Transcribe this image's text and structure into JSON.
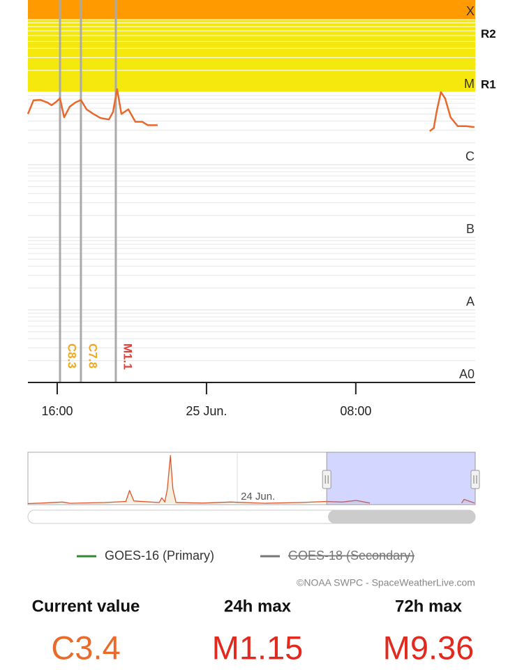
{
  "chart_data": [
    {
      "type": "line",
      "log_scale": true,
      "grid": true,
      "minor_grid": true,
      "xlim": [
        14.43,
        38.4
      ],
      "xticks": [
        {
          "value": 16,
          "label": "16:00"
        },
        {
          "value": 24,
          "label": "25 Jun."
        },
        {
          "value": 32,
          "label": "08:00"
        }
      ],
      "ylim": [
        1e-09,
        0.000186
      ],
      "yticks": [
        {
          "value": 1e-09,
          "label": "A0"
        },
        {
          "value": 1e-08,
          "label": "A"
        },
        {
          "value": 1e-07,
          "label": "B"
        },
        {
          "value": 1e-06,
          "label": "C"
        },
        {
          "value": 1e-05,
          "label": "M"
        },
        {
          "value": 0.0001,
          "label": "X"
        }
      ],
      "bands": [
        {
          "from": 1e-05,
          "to": 0.0001,
          "color": "#f5e80c"
        },
        {
          "from": 0.0001,
          "to": 0.000186,
          "color": "#ff9a00"
        }
      ],
      "r_levels": [
        {
          "value": 1e-05,
          "label": "R1"
        },
        {
          "value": 5e-05,
          "label": "R2"
        }
      ],
      "annotations": [
        {
          "x": 16.15,
          "label": "C8.3",
          "color": "#f0a81e"
        },
        {
          "x": 17.27,
          "label": "C7.8",
          "color": "#f0a81e"
        },
        {
          "x": 19.14,
          "label": "M1.1",
          "color": "#d9413a"
        }
      ],
      "x": [
        14.43,
        14.73,
        15.1,
        15.48,
        15.7,
        15.93,
        16.15,
        16.37,
        16.67,
        16.97,
        17.27,
        17.57,
        17.94,
        18.32,
        18.77,
        18.99,
        19.21,
        19.44,
        19.81,
        20.19,
        20.56,
        20.86,
        21.38,
        null,
        35.96,
        36.18,
        36.34,
        36.56,
        36.79,
        37.08,
        37.46,
        37.91,
        38.36
      ],
      "line_color": "#e8692b",
      "series": [
        {
          "name": "GOES-16 (Primary)",
          "color": "#2e8b2e",
          "visible": true,
          "values": [
            5e-06,
            7.7e-06,
            7.8e-06,
            7.2e-06,
            6.6e-06,
            7.3e-06,
            8.2e-06,
            4.5e-06,
            6.3e-06,
            7.2e-06,
            7.8e-06,
            5.8e-06,
            5e-06,
            4.4e-06,
            4.2e-06,
            5.3e-06,
            1.1e-05,
            5e-06,
            5.8e-06,
            3.9e-06,
            3.9e-06,
            3.5e-06,
            3.5e-06,
            null,
            2.9e-06,
            3.2e-06,
            5.5e-06,
            1e-05,
            8.2e-06,
            4.5e-06,
            3.4e-06,
            3.4e-06,
            3.3e-06
          ]
        },
        {
          "name": "GOES-18 (Secondary)",
          "color": "#777777",
          "visible": false,
          "values": [
            null,
            null,
            null,
            null,
            null,
            null,
            null,
            null,
            null,
            null,
            null,
            null,
            null,
            null,
            null,
            null,
            null,
            null,
            null,
            null,
            null,
            null,
            null,
            null,
            null,
            null,
            null,
            null,
            null,
            null,
            null,
            null,
            null
          ]
        }
      ]
    },
    {
      "type": "line",
      "log_scale": false,
      "xlim": [
        -33.8,
        38.4
      ],
      "ylim": [
        0,
        0.0001
      ],
      "xticks": [
        {
          "value": 0,
          "label": "24 Jun."
        }
      ],
      "selection": [
        14.43,
        38.4
      ],
      "line_color": "#e0542b",
      "x": [
        -33.8,
        -31.5,
        -28.2,
        -27.0,
        -21.4,
        -18.0,
        -17.4,
        -16.7,
        -12.6,
        -12.2,
        -11.7,
        -11.3,
        -10.8,
        -10.4,
        -9.9,
        -5.6,
        -1.1,
        4.5,
        10.1,
        14.4,
        16.9,
        19.2,
        21.4,
        null,
        36.2,
        36.6,
        38.3
      ],
      "values": [
        2e-06,
        3e-06,
        5e-06,
        2.5e-06,
        4e-06,
        6e-06,
        2.7e-05,
        7e-06,
        4e-06,
        1.3e-05,
        5e-06,
        3e-05,
        9.36e-05,
        3e-05,
        4e-06,
        3e-06,
        5e-06,
        2.5e-06,
        4e-06,
        6e-06,
        5e-06,
        8e-06,
        3e-06,
        null,
        3e-06,
        1e-05,
        3e-06
      ]
    }
  ],
  "credit": "©NOAA SWPC - SpaceWeatherLive.com",
  "stats": [
    {
      "label": "Current value",
      "value": "C3.4",
      "color": "#ea6a2a"
    },
    {
      "label": "24h max",
      "value": "M1.15",
      "color": "#e3281e"
    },
    {
      "label": "72h max",
      "value": "M9.36",
      "color": "#e3281e"
    }
  ]
}
